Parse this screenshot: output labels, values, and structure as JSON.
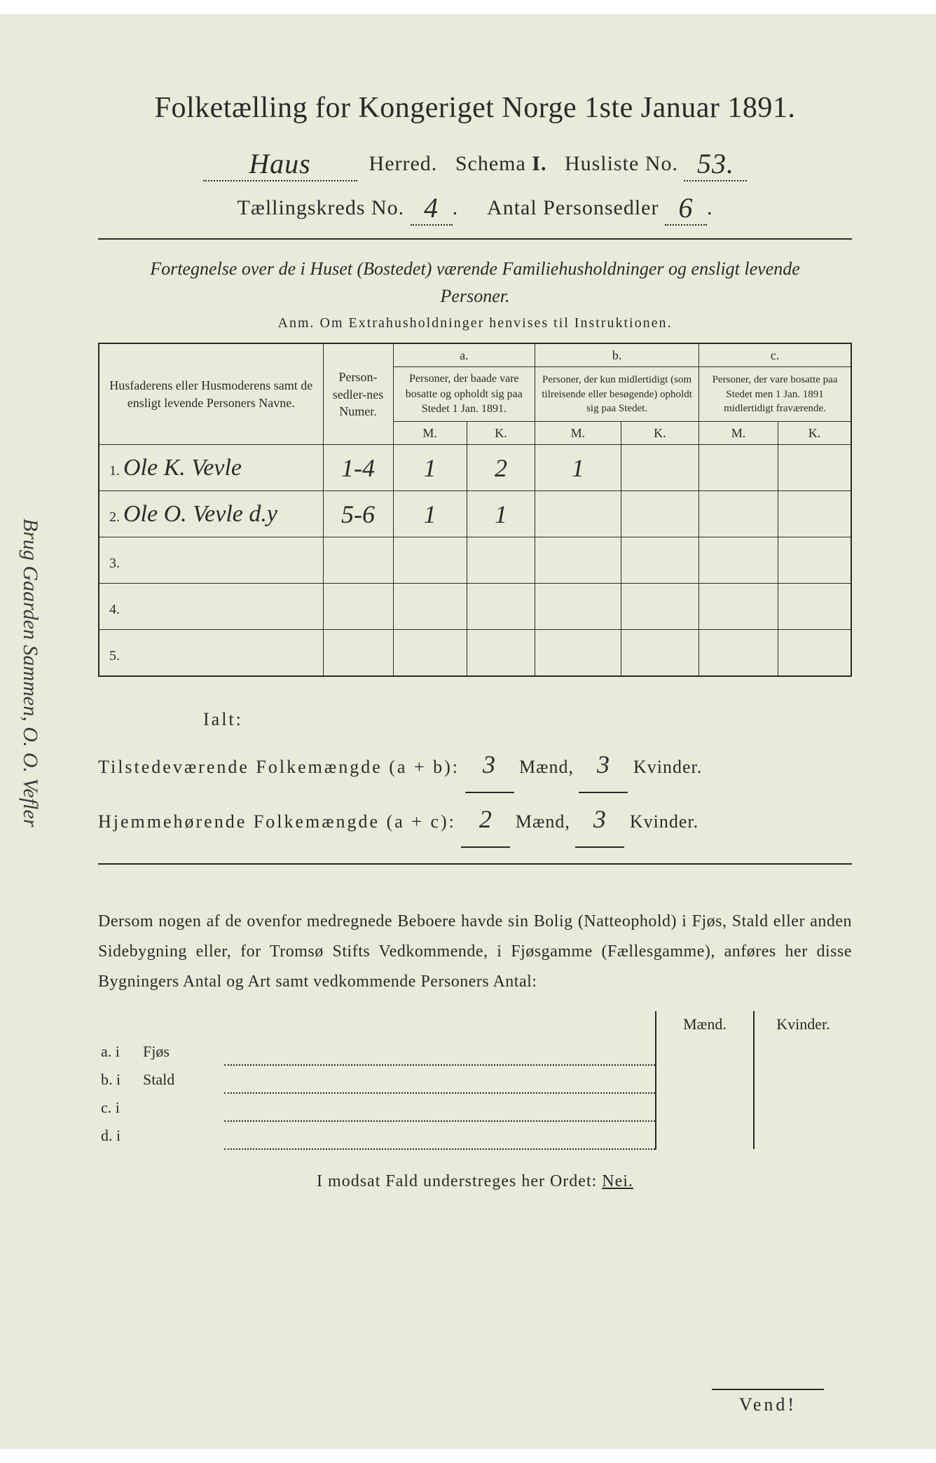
{
  "title": "Folketælling for Kongeriget Norge 1ste Januar 1891.",
  "herred_value": "Haus",
  "herred_label": "Herred.",
  "schema_label": "Schema",
  "schema_value": "I.",
  "husliste_label": "Husliste No.",
  "husliste_value": "53.",
  "kreds_label": "Tællingskreds No.",
  "kreds_value": "4",
  "personsedler_label": "Antal Personsedler",
  "personsedler_value": "6",
  "fortegnelse": "Fortegnelse over de i Huset (Bostedet) værende Familiehusholdninger og ensligt levende Personer.",
  "anm": "Anm. Om Extrahusholdninger henvises til Instruktionen.",
  "table": {
    "col_names": "Husfaderens eller Husmoderens samt de ensligt levende Personers Navne.",
    "col_num": "Person-sedler-nes Numer.",
    "col_a_top": "a.",
    "col_a": "Personer, der baade vare bosatte og opholdt sig paa Stedet 1 Jan. 1891.",
    "col_b_top": "b.",
    "col_b": "Personer, der kun midlertidigt (som tilreisende eller besøgende) opholdt sig paa Stedet.",
    "col_c_top": "c.",
    "col_c": "Personer, der vare bosatte paa Stedet men 1 Jan. 1891 midlertidigt fraværende.",
    "mk_m": "M.",
    "mk_k": "K.",
    "rows": [
      {
        "idx": "1.",
        "name": "Ole K. Vevle",
        "num": "1-4",
        "aM": "1",
        "aK": "2",
        "bM": "1",
        "bK": "",
        "cM": "",
        "cK": ""
      },
      {
        "idx": "2.",
        "name": "Ole O. Vevle d.y",
        "num": "5-6",
        "aM": "1",
        "aK": "1",
        "bM": "",
        "bK": "",
        "cM": "",
        "cK": ""
      },
      {
        "idx": "3.",
        "name": "",
        "num": "",
        "aM": "",
        "aK": "",
        "bM": "",
        "bK": "",
        "cM": "",
        "cK": ""
      },
      {
        "idx": "4.",
        "name": "",
        "num": "",
        "aM": "",
        "aK": "",
        "bM": "",
        "bK": "",
        "cM": "",
        "cK": ""
      },
      {
        "idx": "5.",
        "name": "",
        "num": "",
        "aM": "",
        "aK": "",
        "bM": "",
        "bK": "",
        "cM": "",
        "cK": ""
      }
    ]
  },
  "totals": {
    "ialt": "Ialt:",
    "line1_prefix": "Tilstedeværende Folkemængde (a + b):",
    "line1_m": "3",
    "line1_k": "3",
    "line2_prefix": "Hjemmehørende Folkemængde (a + c):",
    "line2_m": "2",
    "line2_k": "3",
    "maend": "Mænd,",
    "kvinder": "Kvinder."
  },
  "paragraph": "Dersom nogen af de ovenfor medregnede Beboere havde sin Bolig (Natteophold) i Fjøs, Stald eller anden Sidebygning eller, for Tromsø Stifts Vedkommende, i Fjøsgamme (Fællesgamme), anføres her disse Bygningers Antal og Art samt vedkommende Personers Antal:",
  "btable": {
    "head_m": "Mænd.",
    "head_k": "Kvinder.",
    "rows": [
      {
        "a": "a. i",
        "b": "Fjøs"
      },
      {
        "a": "b. i",
        "b": "Stald"
      },
      {
        "a": "c. i",
        "b": ""
      },
      {
        "a": "d. i",
        "b": ""
      }
    ]
  },
  "modsat_pre": "I modsat Fald understreges her Ordet: ",
  "modsat_word": "Nei.",
  "vend": "Vend!",
  "margin_note": "Brug Gaarden Sammen, O. O. Vefler",
  "colors": {
    "paper": "#e8ebd9",
    "ink": "#2a2a2a"
  }
}
